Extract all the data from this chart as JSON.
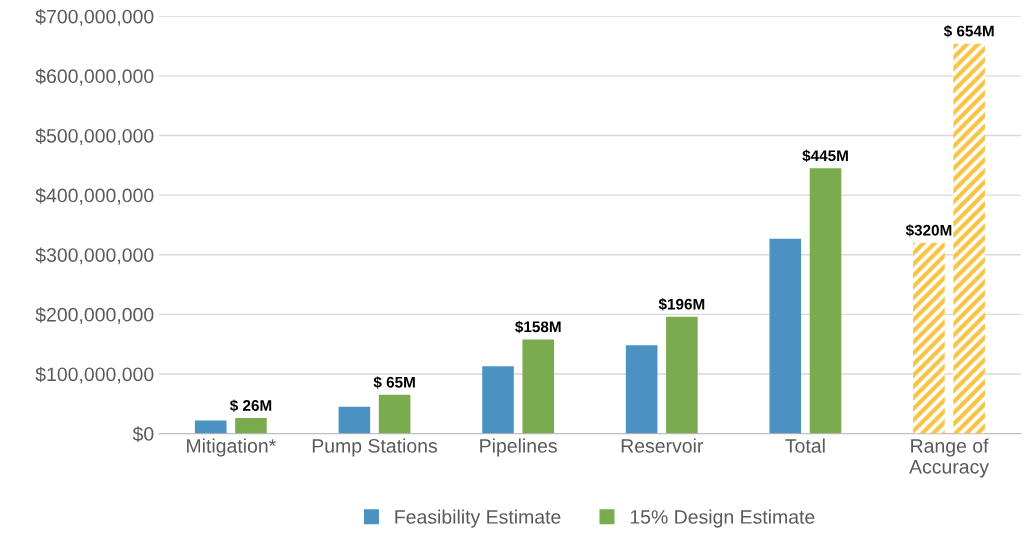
{
  "chart_data": {
    "type": "bar",
    "categories": [
      "Mitigation*",
      "Pump Stations",
      "Pipelines",
      "Reservoir",
      "Total",
      "Range of\nAccuracy"
    ],
    "series": [
      {
        "name": "Feasibility Estimate",
        "color": "#4a92c2",
        "values": [
          22000000,
          45000000,
          113000000,
          148000000,
          327000000,
          320000000
        ],
        "colors": [
          "#4a92c2",
          "#4a92c2",
          "#4a92c2",
          "#4a92c2",
          "#4a92c2",
          "#f6c342"
        ],
        "value_labels": [
          null,
          null,
          null,
          null,
          null,
          "$320M"
        ]
      },
      {
        "name": "15% Design Estimate",
        "color": "#7bab4f",
        "values": [
          26000000,
          65000000,
          158000000,
          196000000,
          445000000,
          654000000
        ],
        "colors": [
          "#7bab4f",
          "#7bab4f",
          "#7bab4f",
          "#7bab4f",
          "#7bab4f",
          "#f6c342"
        ],
        "value_labels": [
          "$ 26M",
          "$ 65M",
          "$158M",
          "$196M",
          "$445M",
          "$ 654M"
        ]
      }
    ],
    "ylim": [
      0,
      700000000
    ],
    "yticks": [
      {
        "value": 0,
        "label": "$0"
      },
      {
        "value": 100000000,
        "label": "$100,000,000"
      },
      {
        "value": 200000000,
        "label": "$200,000,000"
      },
      {
        "value": 300000000,
        "label": "$300,000,000"
      },
      {
        "value": 400000000,
        "label": "$400,000,000"
      },
      {
        "value": 500000000,
        "label": "$500,000,000"
      },
      {
        "value": 600000000,
        "label": "$600,000,000"
      },
      {
        "value": 700000000,
        "label": "$700,000,000"
      }
    ],
    "grid": "y",
    "legend": "bottom"
  }
}
